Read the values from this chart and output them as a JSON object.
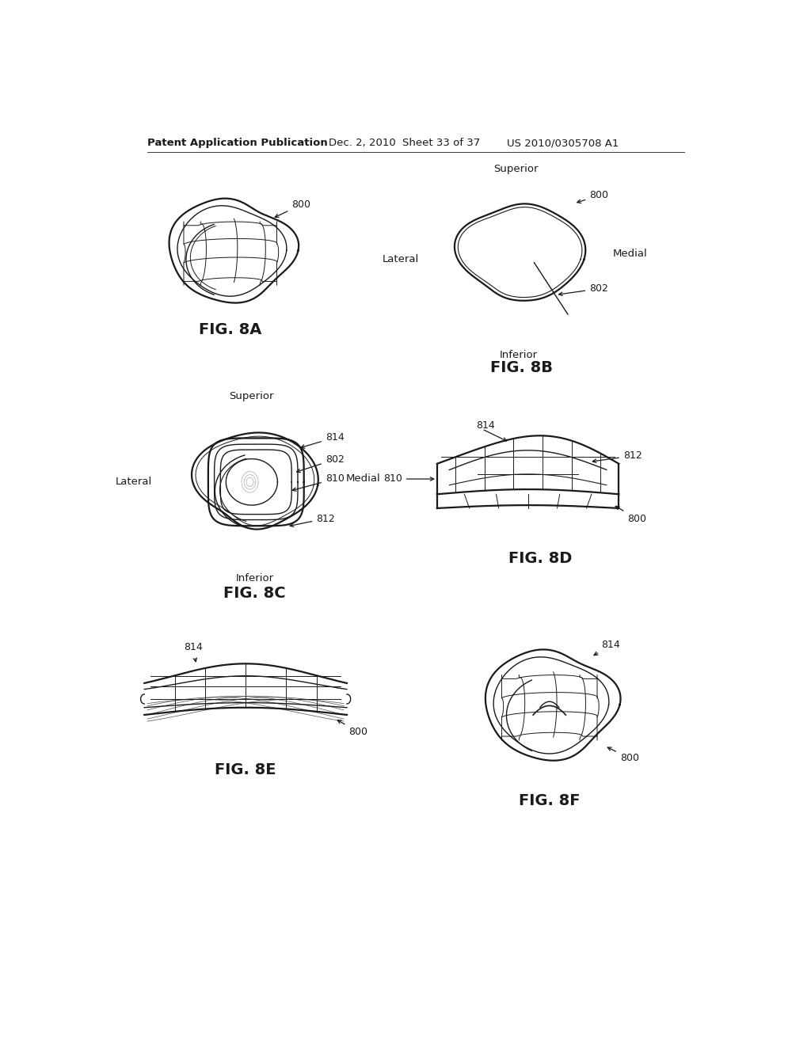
{
  "title_left": "Patent Application Publication",
  "title_mid": "Dec. 2, 2010",
  "title_mid2": "Sheet 33 of 37",
  "title_right": "US 2010/0305708 A1",
  "bg_color": "#ffffff",
  "line_color": "#1a1a1a",
  "fig_labels": [
    "FIG. 8A",
    "FIG. 8B",
    "FIG. 8C",
    "FIG. 8D",
    "FIG. 8E",
    "FIG. 8F"
  ],
  "font_size_header": 9.5,
  "font_size_fig": 14,
  "font_size_ref": 9,
  "font_size_label": 9.5
}
